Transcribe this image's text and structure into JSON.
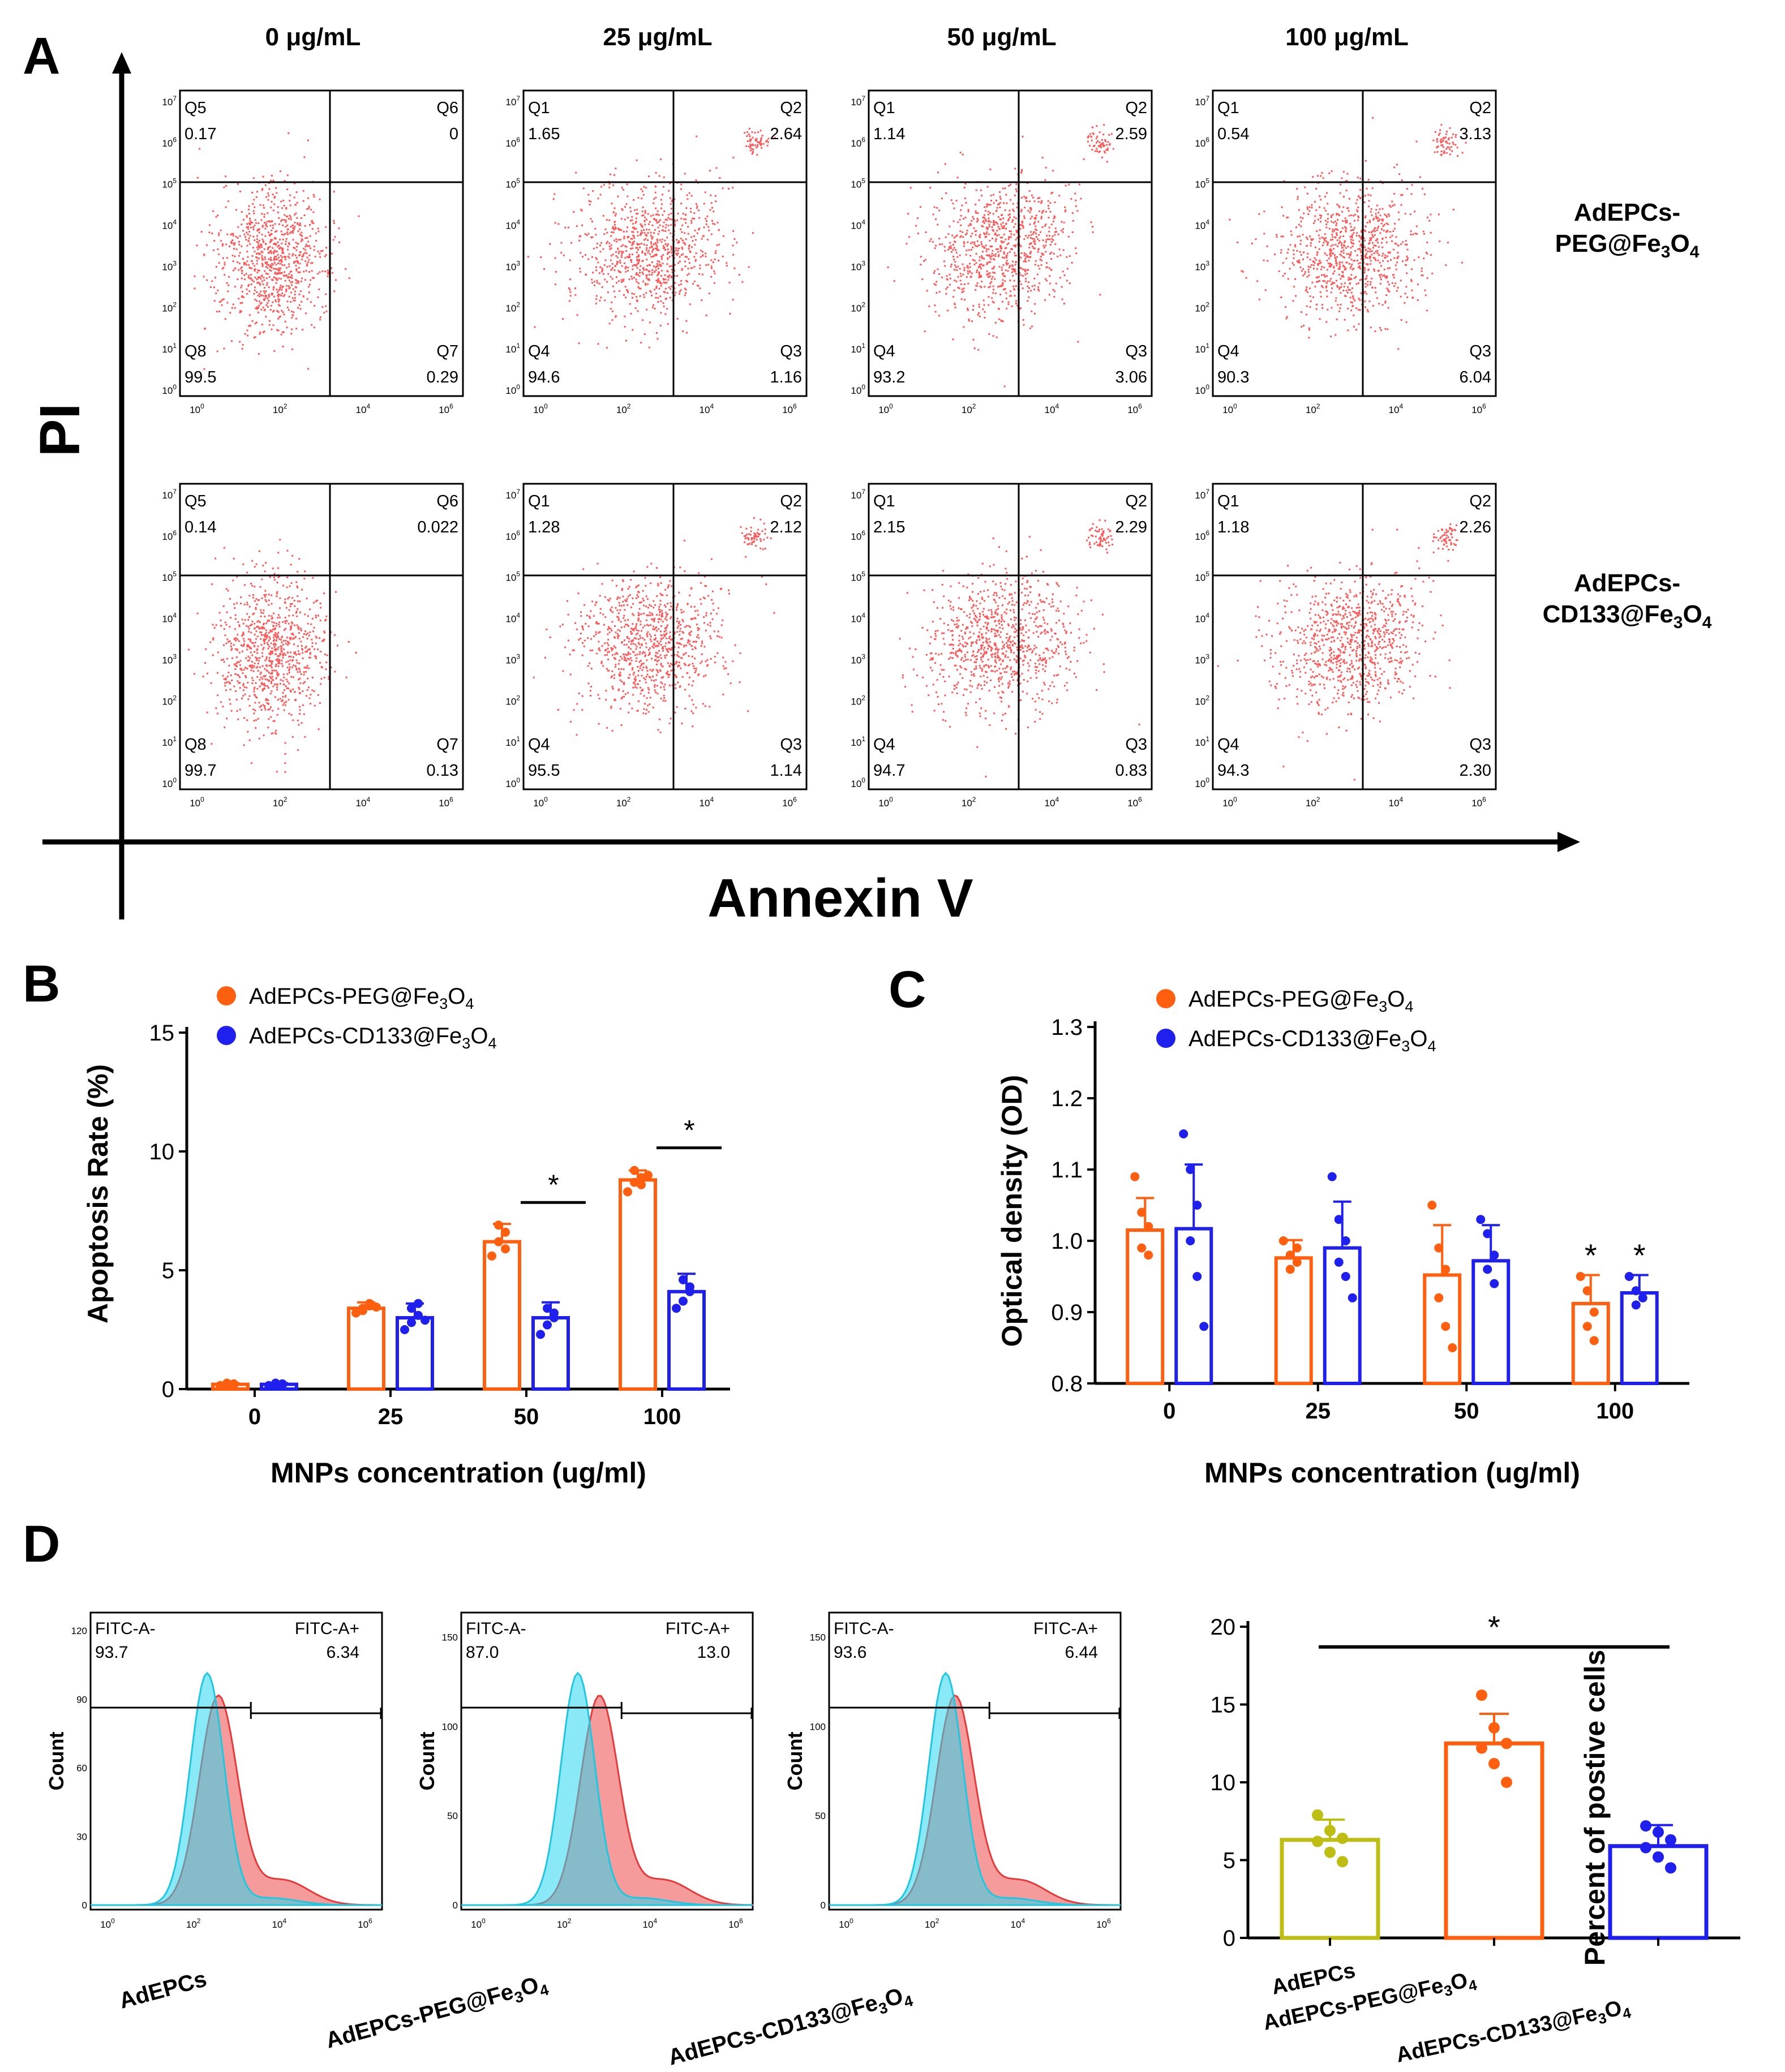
{
  "panel_labels": {
    "a": "A",
    "b": "B",
    "c": "C",
    "d": "D"
  },
  "panel_a": {
    "y_label": "PI",
    "x_label": "Annexin V",
    "columns": [
      "0 μg/mL",
      "25 μg/mL",
      "50 μg/mL",
      "100 μg/mL"
    ],
    "row_labels": [
      {
        "line1": "AdEPCs-",
        "line2_pre": "PEG@Fe",
        "sub1": "3",
        "mid": "O",
        "sub2": "4"
      },
      {
        "line1": "AdEPCs-",
        "line2_pre": "CD133@Fe",
        "sub1": "3",
        "mid": "O",
        "sub2": "4"
      }
    ],
    "log_ticks_y": [
      "10",
      "10",
      "10",
      "10",
      "10",
      "10",
      "10",
      "10"
    ],
    "log_exps_y": [
      "0",
      "1",
      "2",
      "3",
      "4",
      "5",
      "6",
      "7"
    ],
    "log_ticks_x": [
      "10",
      "10",
      "10",
      "10"
    ],
    "log_exps_x": [
      "0",
      "2",
      "4",
      "6"
    ],
    "plots": [
      {
        "row": 0,
        "col": 0,
        "ul": [
          "Q5",
          "0.17"
        ],
        "ur": [
          "Q6",
          "0"
        ],
        "ll": [
          "Q8",
          "99.5"
        ],
        "lr": [
          "Q7",
          "0.29"
        ]
      },
      {
        "row": 0,
        "col": 1,
        "ul": [
          "Q1",
          "1.65"
        ],
        "ur": [
          "Q2",
          "2.64"
        ],
        "ll": [
          "Q4",
          "94.6"
        ],
        "lr": [
          "Q3",
          "1.16"
        ]
      },
      {
        "row": 0,
        "col": 2,
        "ul": [
          "Q1",
          "1.14"
        ],
        "ur": [
          "Q2",
          "2.59"
        ],
        "ll": [
          "Q4",
          "93.2"
        ],
        "lr": [
          "Q3",
          "3.06"
        ]
      },
      {
        "row": 0,
        "col": 3,
        "ul": [
          "Q1",
          "0.54"
        ],
        "ur": [
          "Q2",
          "3.13"
        ],
        "ll": [
          "Q4",
          "90.3"
        ],
        "lr": [
          "Q3",
          "6.04"
        ]
      },
      {
        "row": 1,
        "col": 0,
        "ul": [
          "Q5",
          "0.14"
        ],
        "ur": [
          "Q6",
          "0.022"
        ],
        "ll": [
          "Q8",
          "99.7"
        ],
        "lr": [
          "Q7",
          "0.13"
        ]
      },
      {
        "row": 1,
        "col": 1,
        "ul": [
          "Q1",
          "1.28"
        ],
        "ur": [
          "Q2",
          "2.12"
        ],
        "ll": [
          "Q4",
          "95.5"
        ],
        "lr": [
          "Q3",
          "1.14"
        ]
      },
      {
        "row": 1,
        "col": 2,
        "ul": [
          "Q1",
          "2.15"
        ],
        "ur": [
          "Q2",
          "2.29"
        ],
        "ll": [
          "Q4",
          "94.7"
        ],
        "lr": [
          "Q3",
          "0.83"
        ]
      },
      {
        "row": 1,
        "col": 3,
        "ul": [
          "Q1",
          "1.18"
        ],
        "ur": [
          "Q2",
          "2.26"
        ],
        "ll": [
          "Q4",
          "94.3"
        ],
        "lr": [
          "Q3",
          "2.30"
        ]
      }
    ]
  },
  "colors": {
    "orange": "#ff5f0f",
    "blue": "#2020ee",
    "olive": "#bdbd14",
    "dots": "#ff3a3a",
    "cyan": "#2ad7ee",
    "pink": "#f27a7a",
    "gate": "#000000"
  },
  "legend": {
    "items": [
      {
        "pre": "AdEPCs-PEG@Fe",
        "sub1": "3",
        "mid": "O",
        "sub2": "4",
        "color": "#ff5f0f"
      },
      {
        "pre": "AdEPCs-CD133@Fe",
        "sub1": "3",
        "mid": "O",
        "sub2": "4",
        "color": "#2020ee"
      }
    ]
  },
  "star": "*",
  "chart_data": [
    {
      "id": "B",
      "type": "bar",
      "categories": [
        "0",
        "25",
        "50",
        "100"
      ],
      "series": [
        {
          "name": "AdEPCs-PEG@Fe3O4",
          "values": [
            0.2,
            3.4,
            6.2,
            8.8
          ],
          "errors": [
            0.05,
            0.25,
            0.75,
            0.4
          ],
          "points": [
            [
              0.15,
              0.2,
              0.22,
              0.25,
              0.18
            ],
            [
              3.2,
              3.4,
              3.5,
              3.3,
              3.6,
              3.45
            ],
            [
              5.6,
              6.2,
              6.6,
              6.9,
              5.9
            ],
            [
              8.3,
              8.7,
              8.9,
              9.2,
              8.6,
              9.0
            ]
          ]
        },
        {
          "name": "AdEPCs-CD133@Fe3O4",
          "values": [
            0.2,
            3.0,
            3.0,
            4.1
          ],
          "errors": [
            0.05,
            0.6,
            0.65,
            0.75
          ],
          "points": [
            [
              0.15,
              0.2,
              0.22,
              0.25,
              0.18
            ],
            [
              2.5,
              2.8,
              3.1,
              3.4,
              3.6,
              2.9
            ],
            [
              2.3,
              2.7,
              3.0,
              3.4,
              3.2
            ],
            [
              3.4,
              3.7,
              4.3,
              4.6,
              4.1
            ]
          ]
        }
      ],
      "title": "",
      "xlabel": "MNPs concentration (ug/ml)",
      "ylabel": "Apoptosis Rate (%)",
      "ylim": [
        0,
        15
      ],
      "yticks": [
        "0",
        "5",
        "10",
        "15"
      ],
      "significance": [
        {
          "category_index": 2,
          "label": "*"
        },
        {
          "category_index": 3,
          "label": "*"
        }
      ]
    },
    {
      "id": "C",
      "type": "bar",
      "categories": [
        "0",
        "25",
        "50",
        "100"
      ],
      "series": [
        {
          "name": "AdEPCs-PEG@Fe3O4",
          "values": [
            1.015,
            0.976,
            0.952,
            0.912
          ],
          "errors": [
            0.045,
            0.025,
            0.07,
            0.04
          ],
          "points": [
            [
              1.09,
              1.04,
              1.02,
              0.99,
              0.98
            ],
            [
              1.0,
              0.98,
              0.97,
              0.96,
              0.99
            ],
            [
              1.05,
              0.99,
              0.96,
              0.92,
              0.88,
              0.85
            ],
            [
              0.95,
              0.93,
              0.9,
              0.88,
              0.86
            ]
          ]
        },
        {
          "name": "AdEPCs-CD133@Fe3O4",
          "values": [
            1.017,
            0.99,
            0.972,
            0.927
          ],
          "errors": [
            0.09,
            0.065,
            0.05,
            0.025
          ],
          "points": [
            [
              1.15,
              1.1,
              1.05,
              1.0,
              0.95,
              0.88
            ],
            [
              1.09,
              1.03,
              1.0,
              0.97,
              0.95,
              0.92
            ],
            [
              1.03,
              1.01,
              0.98,
              0.96,
              0.94
            ],
            [
              0.95,
              0.93,
              0.92,
              0.91
            ]
          ]
        }
      ],
      "title": "",
      "xlabel": "MNPs concentration (ug/ml)",
      "ylabel": "Optical density (OD)",
      "ylim": [
        0.8,
        1.3
      ],
      "yticks": [
        "0.8",
        "0.9",
        "1.0",
        "1.1",
        "1.2",
        "1.3"
      ],
      "significance": [
        {
          "category_index": 3,
          "series": 0,
          "label": "*"
        },
        {
          "category_index": 3,
          "series": 1,
          "label": "*"
        }
      ]
    },
    {
      "id": "D-bar",
      "type": "bar",
      "categories": [
        "AdEPCs",
        "AdEPCs-PEG@Fe3O4",
        "AdEPCs-CD133@Fe3O4"
      ],
      "category_labels": [
        {
          "pre": "AdEPCs",
          "sub1": "",
          "mid": "",
          "sub2": ""
        },
        {
          "pre": "AdEPCs-PEG@Fe",
          "sub1": "3",
          "mid": "O",
          "sub2": "4"
        },
        {
          "pre": "AdEPCs-CD133@Fe",
          "sub1": "3",
          "mid": "O",
          "sub2": "4"
        }
      ],
      "values": [
        6.3,
        12.5,
        5.9
      ],
      "errors": [
        1.3,
        1.9,
        1.35
      ],
      "points": [
        [
          7.9,
          6.9,
          6.4,
          6.2,
          5.5,
          4.9
        ],
        [
          15.6,
          13.5,
          12.5,
          12.2,
          11.2,
          10.0
        ],
        [
          7.2,
          6.8,
          6.3,
          5.8,
          5.2,
          4.5
        ]
      ],
      "colors": [
        "#bdbd14",
        "#ff5f0f",
        "#2020ee"
      ],
      "title": "",
      "xlabel": "",
      "ylabel": "Percent of postive cells",
      "ylim": [
        0,
        20
      ],
      "yticks": [
        "0",
        "5",
        "10",
        "15",
        "20"
      ],
      "significance": [
        {
          "from": 0,
          "to": 2,
          "label": "*"
        }
      ]
    },
    {
      "id": "D-histograms",
      "type": "area",
      "ylabel": "Count",
      "panels": [
        {
          "label": {
            "pre": "AdEPCs",
            "sub1": "",
            "mid": "",
            "sub2": ""
          },
          "neg": [
            "FITC-A-",
            "93.7"
          ],
          "pos": [
            "FITC-A+",
            "6.34"
          ],
          "yticks": [
            "0",
            "30",
            "60",
            "90",
            "120"
          ],
          "ymax": 125,
          "shift": 0.15
        },
        {
          "label": {
            "pre": "AdEPCs-PEG@Fe",
            "sub1": "3",
            "mid": "O",
            "sub2": "4"
          },
          "neg": [
            "FITC-A-",
            "87.0"
          ],
          "pos": [
            "FITC-A+",
            "13.0"
          ],
          "yticks": [
            "0",
            "50",
            "100",
            "150"
          ],
          "ymax": 160,
          "shift": 0.45
        },
        {
          "label": {
            "pre": "AdEPCs-CD133@Fe",
            "sub1": "3",
            "mid": "O",
            "sub2": "4"
          },
          "neg": [
            "FITC-A-",
            "93.6"
          ],
          "pos": [
            "FITC-A+",
            "6.44"
          ],
          "yticks": [
            "0",
            "50",
            "100",
            "150"
          ],
          "ymax": 160,
          "shift": 0.1
        }
      ],
      "xticks_base": [
        "10",
        "10",
        "10",
        "10"
      ],
      "xticks_exp": [
        "0",
        "2",
        "4",
        "6"
      ]
    }
  ]
}
